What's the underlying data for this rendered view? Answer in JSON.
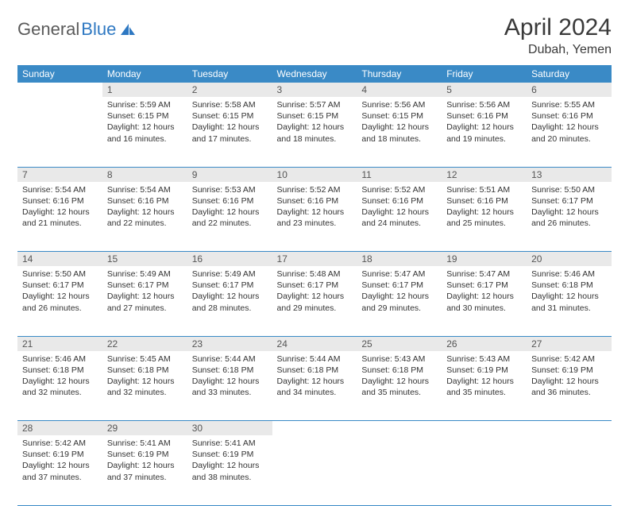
{
  "logo": {
    "word1": "General",
    "word2": "Blue"
  },
  "title": "April 2024",
  "location": "Dubah, Yemen",
  "colors": {
    "header_bg": "#3a8ac6",
    "header_text": "#ffffff",
    "daynum_bg": "#e9e9e9",
    "row_border": "#3a8ac6",
    "body_bg": "#ffffff",
    "text": "#333333",
    "logo_gray": "#5a5a5a",
    "logo_blue": "#2e78c2"
  },
  "weekdays": [
    "Sunday",
    "Monday",
    "Tuesday",
    "Wednesday",
    "Thursday",
    "Friday",
    "Saturday"
  ],
  "weeks": [
    [
      null,
      {
        "n": "1",
        "sr": "5:59 AM",
        "ss": "6:15 PM",
        "dl": "12 hours and 16 minutes."
      },
      {
        "n": "2",
        "sr": "5:58 AM",
        "ss": "6:15 PM",
        "dl": "12 hours and 17 minutes."
      },
      {
        "n": "3",
        "sr": "5:57 AM",
        "ss": "6:15 PM",
        "dl": "12 hours and 18 minutes."
      },
      {
        "n": "4",
        "sr": "5:56 AM",
        "ss": "6:15 PM",
        "dl": "12 hours and 18 minutes."
      },
      {
        "n": "5",
        "sr": "5:56 AM",
        "ss": "6:16 PM",
        "dl": "12 hours and 19 minutes."
      },
      {
        "n": "6",
        "sr": "5:55 AM",
        "ss": "6:16 PM",
        "dl": "12 hours and 20 minutes."
      }
    ],
    [
      {
        "n": "7",
        "sr": "5:54 AM",
        "ss": "6:16 PM",
        "dl": "12 hours and 21 minutes."
      },
      {
        "n": "8",
        "sr": "5:54 AM",
        "ss": "6:16 PM",
        "dl": "12 hours and 22 minutes."
      },
      {
        "n": "9",
        "sr": "5:53 AM",
        "ss": "6:16 PM",
        "dl": "12 hours and 22 minutes."
      },
      {
        "n": "10",
        "sr": "5:52 AM",
        "ss": "6:16 PM",
        "dl": "12 hours and 23 minutes."
      },
      {
        "n": "11",
        "sr": "5:52 AM",
        "ss": "6:16 PM",
        "dl": "12 hours and 24 minutes."
      },
      {
        "n": "12",
        "sr": "5:51 AM",
        "ss": "6:16 PM",
        "dl": "12 hours and 25 minutes."
      },
      {
        "n": "13",
        "sr": "5:50 AM",
        "ss": "6:17 PM",
        "dl": "12 hours and 26 minutes."
      }
    ],
    [
      {
        "n": "14",
        "sr": "5:50 AM",
        "ss": "6:17 PM",
        "dl": "12 hours and 26 minutes."
      },
      {
        "n": "15",
        "sr": "5:49 AM",
        "ss": "6:17 PM",
        "dl": "12 hours and 27 minutes."
      },
      {
        "n": "16",
        "sr": "5:49 AM",
        "ss": "6:17 PM",
        "dl": "12 hours and 28 minutes."
      },
      {
        "n": "17",
        "sr": "5:48 AM",
        "ss": "6:17 PM",
        "dl": "12 hours and 29 minutes."
      },
      {
        "n": "18",
        "sr": "5:47 AM",
        "ss": "6:17 PM",
        "dl": "12 hours and 29 minutes."
      },
      {
        "n": "19",
        "sr": "5:47 AM",
        "ss": "6:17 PM",
        "dl": "12 hours and 30 minutes."
      },
      {
        "n": "20",
        "sr": "5:46 AM",
        "ss": "6:18 PM",
        "dl": "12 hours and 31 minutes."
      }
    ],
    [
      {
        "n": "21",
        "sr": "5:46 AM",
        "ss": "6:18 PM",
        "dl": "12 hours and 32 minutes."
      },
      {
        "n": "22",
        "sr": "5:45 AM",
        "ss": "6:18 PM",
        "dl": "12 hours and 32 minutes."
      },
      {
        "n": "23",
        "sr": "5:44 AM",
        "ss": "6:18 PM",
        "dl": "12 hours and 33 minutes."
      },
      {
        "n": "24",
        "sr": "5:44 AM",
        "ss": "6:18 PM",
        "dl": "12 hours and 34 minutes."
      },
      {
        "n": "25",
        "sr": "5:43 AM",
        "ss": "6:18 PM",
        "dl": "12 hours and 35 minutes."
      },
      {
        "n": "26",
        "sr": "5:43 AM",
        "ss": "6:19 PM",
        "dl": "12 hours and 35 minutes."
      },
      {
        "n": "27",
        "sr": "5:42 AM",
        "ss": "6:19 PM",
        "dl": "12 hours and 36 minutes."
      }
    ],
    [
      {
        "n": "28",
        "sr": "5:42 AM",
        "ss": "6:19 PM",
        "dl": "12 hours and 37 minutes."
      },
      {
        "n": "29",
        "sr": "5:41 AM",
        "ss": "6:19 PM",
        "dl": "12 hours and 37 minutes."
      },
      {
        "n": "30",
        "sr": "5:41 AM",
        "ss": "6:19 PM",
        "dl": "12 hours and 38 minutes."
      },
      null,
      null,
      null,
      null
    ]
  ],
  "labels": {
    "sunrise": "Sunrise:",
    "sunset": "Sunset:",
    "daylight": "Daylight:"
  }
}
